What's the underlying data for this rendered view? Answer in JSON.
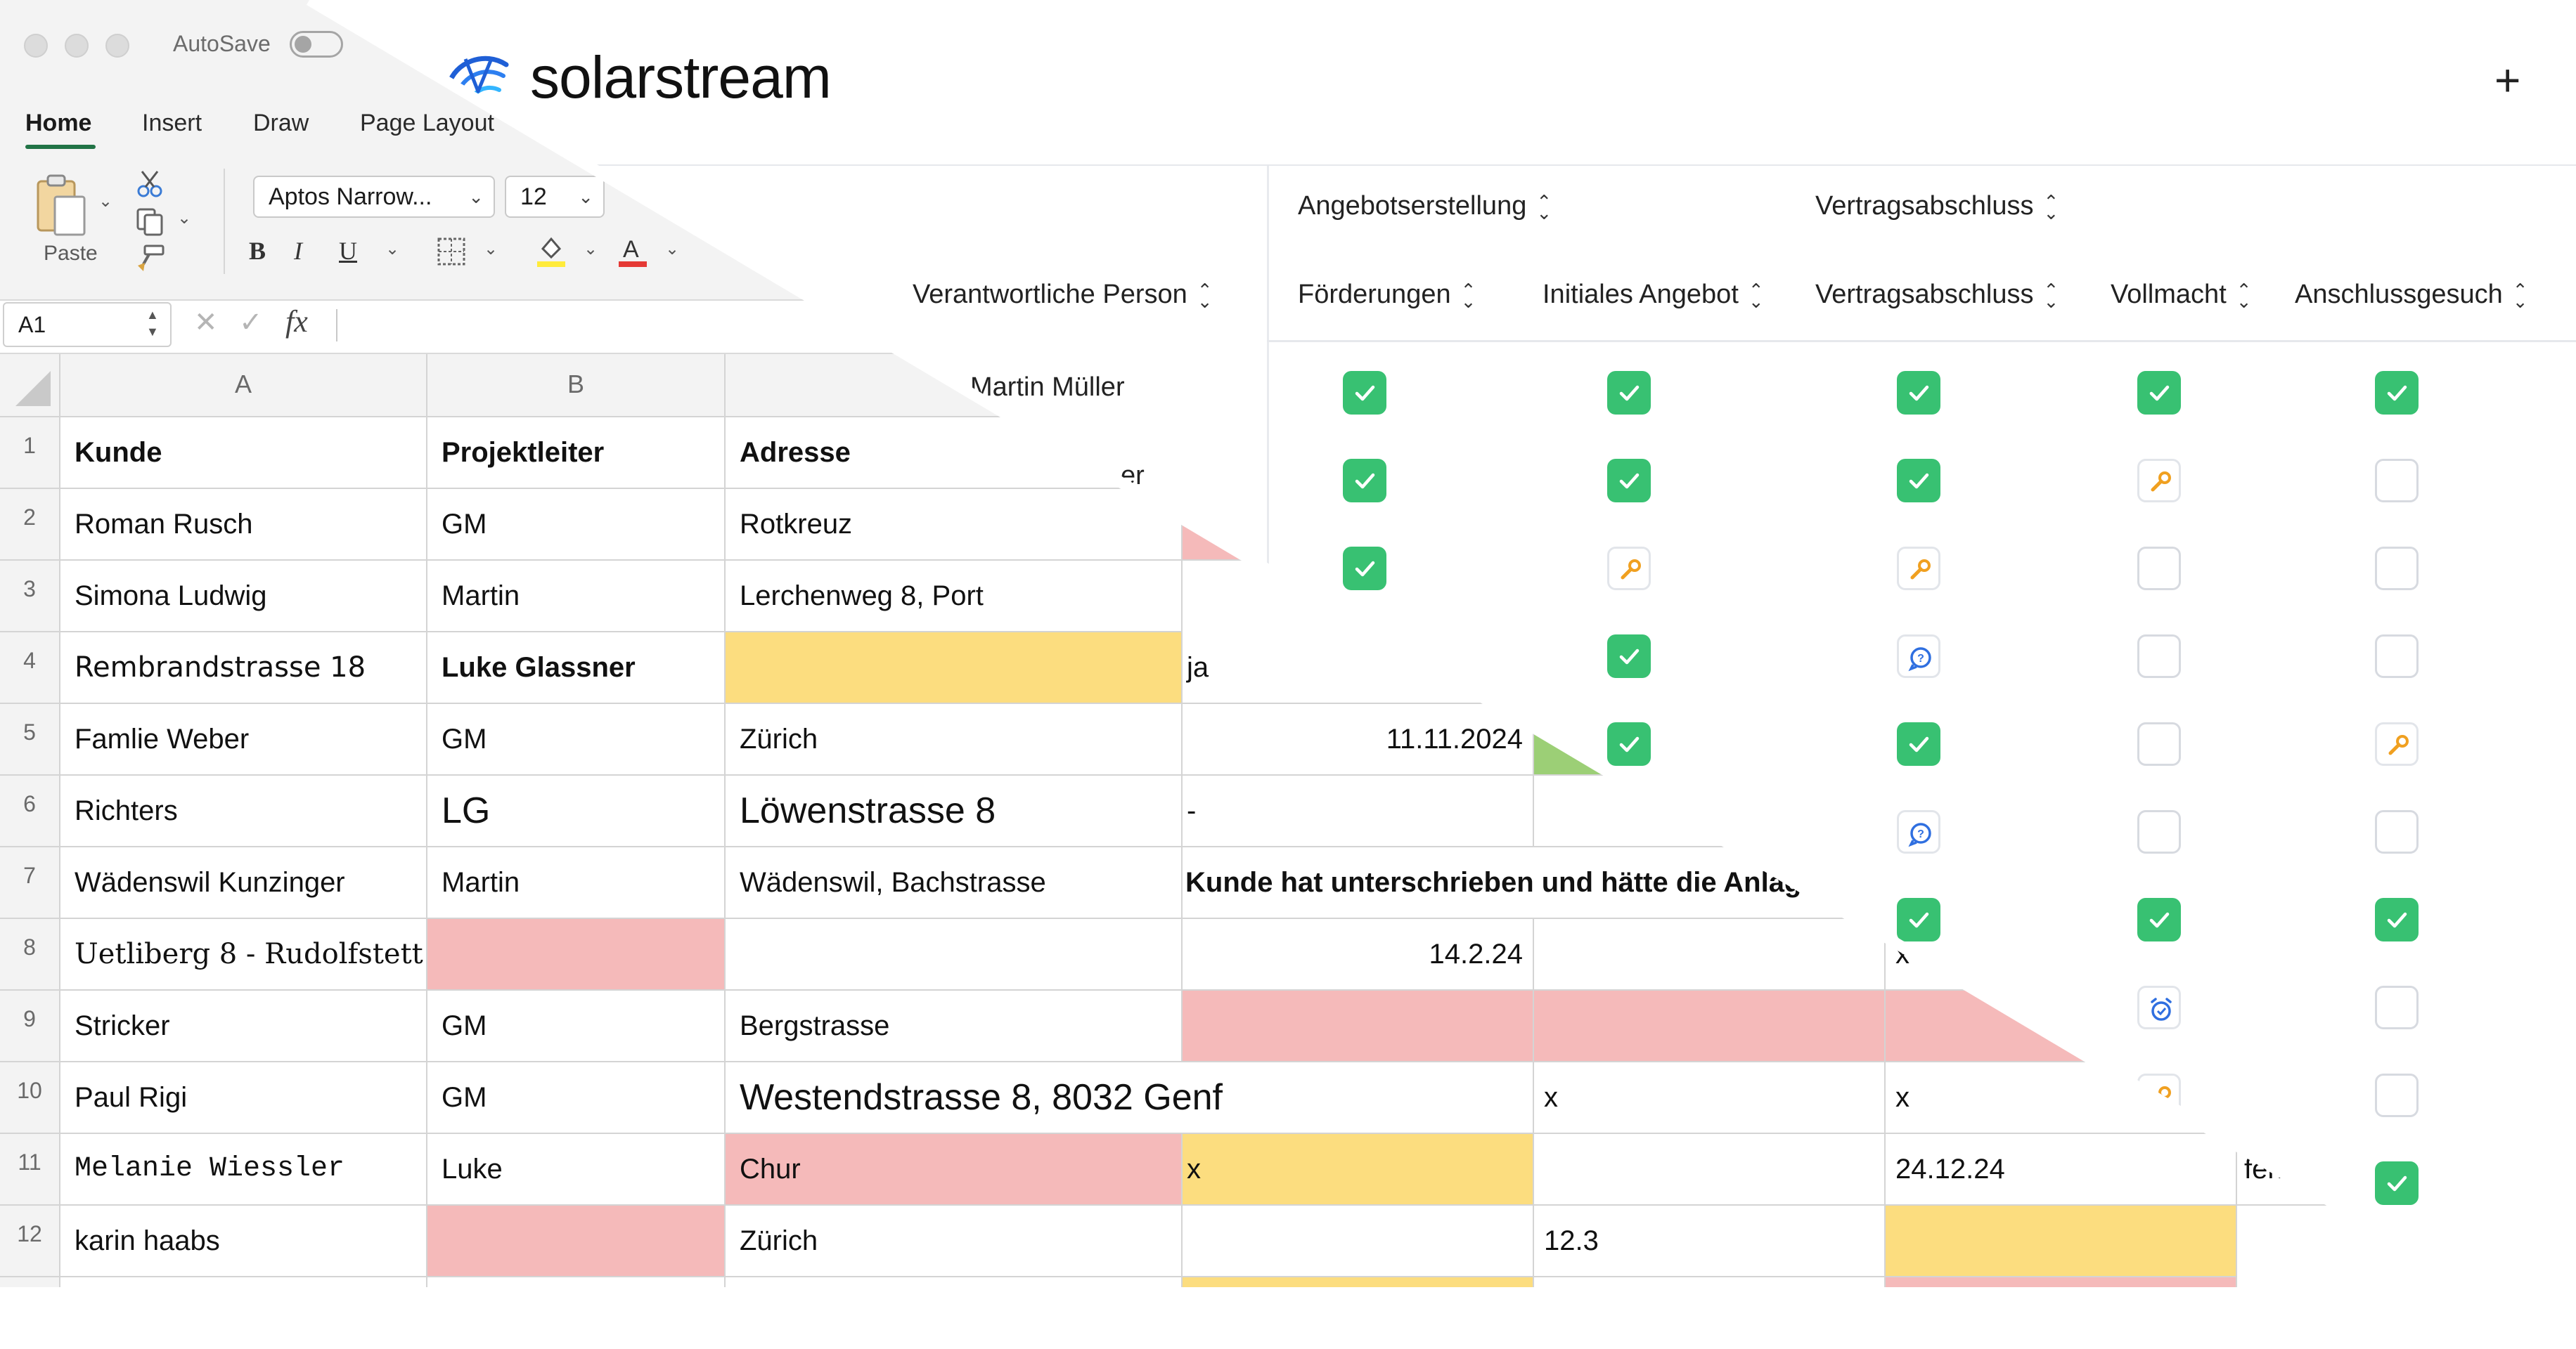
{
  "excel": {
    "autosave_label": "AutoSave",
    "tabs": [
      "Home",
      "Insert",
      "Draw",
      "Page Layout"
    ],
    "paste_label": "Paste",
    "font_name": "Aptos Narrow...",
    "font_size": "12",
    "format_buttons": [
      "B",
      "I",
      "U"
    ],
    "name_box": "A1",
    "fx_label": "fx",
    "col_headers": [
      "A",
      "B"
    ],
    "header_row": {
      "kunde": "Kunde",
      "projektleiter": "Projektleiter",
      "adresse": "Adresse"
    },
    "rows": [
      {
        "n": "1"
      },
      {
        "n": "2",
        "a": "Roman Rusch",
        "b": "GM",
        "c": "Rotkreuz"
      },
      {
        "n": "3",
        "a": "Simona Ludwig",
        "b": "Martin",
        "c": "Lerchenweg 8, Port"
      },
      {
        "n": "4",
        "a": "Rembrandstrasse 18",
        "b": "Luke Glassner",
        "c": "",
        "d": "ja"
      },
      {
        "n": "5",
        "a": "Famlie Weber",
        "b": "GM",
        "c": "Zürich",
        "d": "11.11.2024"
      },
      {
        "n": "6",
        "a": "Richters",
        "b": "LG",
        "c": "Löwenstrasse 8",
        "d": "-"
      },
      {
        "n": "7",
        "a": "Wädenswil Kunzinger",
        "b": "Martin",
        "c": "Wädenswil, Bachstrasse",
        "d": "Kunde hat unterschrieben und hätte die Anlag"
      },
      {
        "n": "8",
        "a": "Uetliberg 8 - Rudolfstett",
        "b": "",
        "c": "",
        "d": "14.2.24",
        "f": "x"
      },
      {
        "n": "9",
        "a": "Stricker",
        "b": "GM",
        "c": "Bergstrasse"
      },
      {
        "n": "10",
        "a": "Paul Rigi",
        "b": "GM",
        "c": "Westendstrasse 8, 8032 Genf",
        "e": "x",
        "f": "x"
      },
      {
        "n": "11",
        "a": "Melanie Wiessler",
        "b": "Luke",
        "c": "Chur",
        "d": "x",
        "f": "24.12.24",
        "g": "fen"
      },
      {
        "n": "12",
        "a": "karin haabs",
        "b": "",
        "c": "Zürich",
        "e": "12.3"
      }
    ]
  },
  "app": {
    "brand": "solarstream",
    "groups": [
      "Angebotserstellung",
      "Vertragsabschluss"
    ],
    "person_column": "Verantwortliche Person",
    "columns": [
      "Förderungen",
      "Initiales Angebot",
      "Vertragsabschluss",
      "Vollmacht",
      "Anschlussgesuch"
    ],
    "persons": [
      "Martin Müller",
      "er"
    ],
    "status_rows": [
      [
        "done",
        "done",
        "done",
        "done",
        "done"
      ],
      [
        "done",
        "done",
        "done",
        "wrench",
        "empty"
      ],
      [
        "done",
        "wrench",
        "wrench",
        "empty",
        "empty"
      ],
      [
        "hidden",
        "done",
        "chat",
        "empty",
        "empty"
      ],
      [
        "hidden",
        "done",
        "done",
        "empty",
        "wrench"
      ],
      [
        "hidden",
        "hidden",
        "chat",
        "empty",
        "empty"
      ],
      [
        "hidden",
        "hidden",
        "done",
        "done",
        "done"
      ],
      [
        "hidden",
        "hidden",
        "hidden",
        "alarm",
        "empty"
      ],
      [
        "hidden",
        "hidden",
        "hidden",
        "wrench",
        "empty"
      ],
      [
        "hidden",
        "hidden",
        "hidden",
        "hidden",
        "done"
      ]
    ],
    "colors": {
      "done": "#38c172",
      "wrench": "#f0a020",
      "chat": "#2f6fe0",
      "alarm": "#2f6fe0",
      "excel_green": "#217346"
    }
  }
}
